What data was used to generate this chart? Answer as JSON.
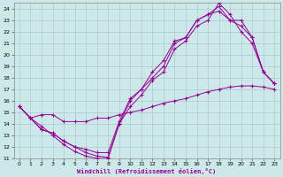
{
  "xlabel": "Windchill (Refroidissement éolien,°C)",
  "bg_color": "#cce8e8",
  "grid_color": "#aacccc",
  "line_color": "#990099",
  "xlim": [
    -0.5,
    23.5
  ],
  "ylim": [
    11,
    24.5
  ],
  "xticks": [
    0,
    1,
    2,
    3,
    4,
    5,
    6,
    7,
    8,
    9,
    10,
    11,
    12,
    13,
    14,
    15,
    16,
    17,
    18,
    19,
    20,
    21,
    22,
    23
  ],
  "yticks": [
    11,
    12,
    13,
    14,
    15,
    16,
    17,
    18,
    19,
    20,
    21,
    22,
    23,
    24
  ],
  "line1_x": [
    0,
    1,
    2,
    3,
    4,
    5,
    6,
    7,
    8,
    9,
    10,
    11,
    12,
    13,
    14,
    15,
    16,
    17,
    18,
    19,
    20,
    21,
    22,
    23
  ],
  "line1_y": [
    15.5,
    14.5,
    13.8,
    13.0,
    12.2,
    11.6,
    11.2,
    11.0,
    11.0,
    14.0,
    15.5,
    16.5,
    17.8,
    18.5,
    20.5,
    21.2,
    22.5,
    23.0,
    24.5,
    23.5,
    22.0,
    21.0,
    18.5,
    17.5
  ],
  "line2_x": [
    0,
    1,
    2,
    3,
    4,
    5,
    6,
    7,
    8,
    9,
    10,
    11,
    12,
    13,
    14,
    15,
    16,
    17,
    18,
    19,
    20,
    21,
    22,
    23
  ],
  "line2_y": [
    15.5,
    14.5,
    13.5,
    13.2,
    12.5,
    12.0,
    11.5,
    11.2,
    11.1,
    14.0,
    16.0,
    17.0,
    18.0,
    19.0,
    21.0,
    21.5,
    23.0,
    23.5,
    24.2,
    23.0,
    22.5,
    21.5,
    18.5,
    17.5
  ],
  "line3_x": [
    0,
    1,
    2,
    3,
    4,
    5,
    6,
    7,
    8,
    9,
    10,
    11,
    12,
    13,
    14,
    15,
    16,
    17,
    18,
    19,
    20,
    21,
    22,
    23
  ],
  "line3_y": [
    15.5,
    14.5,
    13.5,
    13.2,
    12.5,
    12.0,
    11.8,
    11.5,
    11.5,
    14.2,
    16.2,
    17.0,
    18.5,
    19.5,
    21.2,
    21.5,
    23.0,
    23.5,
    23.8,
    23.0,
    23.0,
    21.5,
    18.5,
    17.5
  ],
  "line4_x": [
    0,
    1,
    2,
    3,
    4,
    5,
    6,
    7,
    8,
    9,
    10,
    11,
    12,
    13,
    14,
    15,
    16,
    17,
    18,
    19,
    20,
    21,
    22,
    23
  ],
  "line4_y": [
    15.5,
    14.5,
    14.8,
    14.8,
    14.2,
    14.2,
    14.2,
    14.5,
    14.5,
    14.8,
    15.0,
    15.2,
    15.5,
    15.8,
    16.0,
    16.2,
    16.5,
    16.8,
    17.0,
    17.2,
    17.3,
    17.3,
    17.2,
    17.0
  ]
}
